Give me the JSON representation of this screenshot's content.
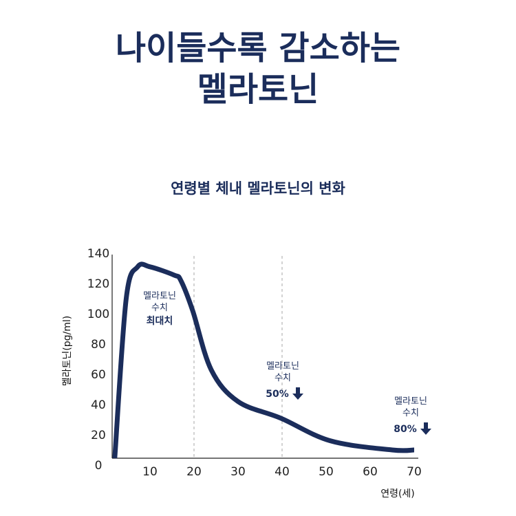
{
  "title": {
    "line1": "나이들수록 감소하는",
    "line2": "멜라토닌"
  },
  "chart_data": {
    "type": "line",
    "title": "연령별 체내 멜라토닌의 변화",
    "xlabel": "연령(세)",
    "ylabel": "멜라토닌(pg/ml)",
    "xticks": [
      10,
      20,
      30,
      40,
      50,
      60,
      70
    ],
    "yticks": [
      0,
      20,
      40,
      60,
      80,
      100,
      120,
      140
    ],
    "xlim": [
      0,
      70
    ],
    "ylim": [
      0,
      140
    ],
    "grid": false,
    "reference_lines_x": [
      20,
      40
    ],
    "color": "#1b2d5b",
    "series": [
      {
        "x": [
          2,
          4.6,
          7.2,
          10,
          15.5,
          17,
          19.7,
          23.9,
          30,
          39.7,
          51,
          65,
          70
        ],
        "y": [
          0,
          110,
          131,
          131,
          125.5,
          122,
          102,
          63,
          42,
          31,
          16,
          10,
          10
        ]
      }
    ],
    "annotations": [
      {
        "lines": [
          "멜라토닌",
          "수치",
          "최대치"
        ],
        "arrow": false
      },
      {
        "lines": [
          "멜라토닌",
          "수치",
          "50%"
        ],
        "arrow": true
      },
      {
        "lines": [
          "멜라토닌",
          "수치",
          "80%"
        ],
        "arrow": true
      }
    ]
  }
}
